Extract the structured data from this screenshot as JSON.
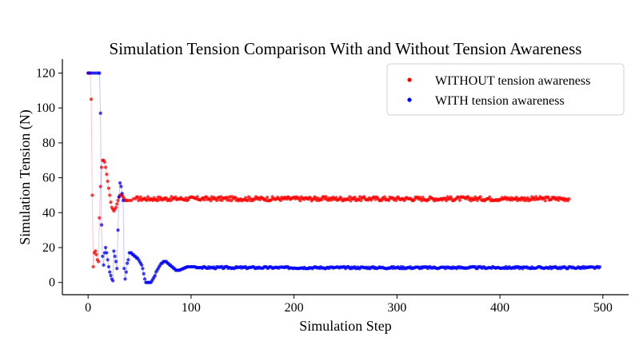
{
  "chart_data": {
    "type": "scatter",
    "title": "Simulation Tension Comparison With and Without Tension Awareness",
    "xlabel": "Simulation Step",
    "ylabel": "Simulation Tension (N)",
    "xlim": [
      -25,
      525
    ],
    "ylim": [
      -7,
      128
    ],
    "xticks": [
      "0",
      "100",
      "200",
      "300",
      "400",
      "500"
    ],
    "yticks": [
      "0",
      "20",
      "40",
      "60",
      "80",
      "100",
      "120"
    ],
    "legend_position": "top-right",
    "series": [
      {
        "name": "WITHOUT tension awareness",
        "color": "#ff0000",
        "x_end": 467,
        "steady_value": 48,
        "noise": 1.2,
        "points": [
          [
            0,
            120
          ],
          [
            1,
            120
          ],
          [
            2,
            120
          ],
          [
            3,
            105
          ],
          [
            4,
            50
          ],
          [
            5,
            9
          ],
          [
            6,
            17
          ],
          [
            7,
            18
          ],
          [
            8,
            16
          ],
          [
            9,
            13
          ],
          [
            10,
            12
          ],
          [
            11,
            37
          ],
          [
            12,
            55
          ],
          [
            13,
            66
          ],
          [
            14,
            70
          ],
          [
            15,
            70
          ],
          [
            16,
            69
          ],
          [
            17,
            66
          ],
          [
            18,
            62
          ],
          [
            19,
            58
          ],
          [
            20,
            54
          ],
          [
            21,
            50
          ],
          [
            22,
            46
          ],
          [
            23,
            43
          ],
          [
            24,
            42
          ],
          [
            25,
            41
          ],
          [
            26,
            42
          ],
          [
            27,
            43
          ],
          [
            28,
            45
          ],
          [
            29,
            47
          ],
          [
            30,
            49
          ],
          [
            31,
            50
          ],
          [
            32,
            50
          ],
          [
            33,
            50
          ],
          [
            34,
            49
          ],
          [
            35,
            48
          ],
          [
            36,
            47
          ],
          [
            37,
            47
          ],
          [
            38,
            47
          ],
          [
            40,
            47
          ],
          [
            42,
            47
          ],
          [
            44,
            48
          ],
          [
            46,
            48
          ]
        ]
      },
      {
        "name": "WITH tension awareness",
        "color": "#0000ff",
        "x_end": 497,
        "steady_value": 8.5,
        "noise": 0.6,
        "points": [
          [
            0,
            120
          ],
          [
            2,
            120
          ],
          [
            4,
            120
          ],
          [
            6,
            120
          ],
          [
            8,
            120
          ],
          [
            10,
            120
          ],
          [
            11,
            120
          ],
          [
            12,
            97
          ],
          [
            13,
            33
          ],
          [
            14,
            15
          ],
          [
            15,
            10
          ],
          [
            16,
            17
          ],
          [
            17,
            20
          ],
          [
            18,
            17
          ],
          [
            19,
            13
          ],
          [
            20,
            9
          ],
          [
            21,
            6
          ],
          [
            22,
            4
          ],
          [
            23,
            2
          ],
          [
            24,
            1
          ],
          [
            25,
            18
          ],
          [
            26,
            15
          ],
          [
            27,
            12
          ],
          [
            28,
            8
          ],
          [
            29,
            30
          ],
          [
            30,
            49
          ],
          [
            31,
            57
          ],
          [
            32,
            55
          ],
          [
            33,
            51
          ],
          [
            34,
            47
          ],
          [
            35,
            8
          ],
          [
            36,
            2
          ],
          [
            37,
            6
          ],
          [
            38,
            11
          ],
          [
            39,
            13
          ],
          [
            40,
            17
          ],
          [
            41,
            17
          ],
          [
            42,
            17
          ],
          [
            43,
            16
          ],
          [
            44,
            16
          ],
          [
            45,
            15
          ],
          [
            46,
            15
          ],
          [
            47,
            14
          ],
          [
            48,
            14
          ],
          [
            49,
            13
          ],
          [
            50,
            12
          ],
          [
            51,
            11
          ],
          [
            52,
            10
          ],
          [
            53,
            8
          ],
          [
            54,
            5
          ],
          [
            55,
            2
          ],
          [
            56,
            0
          ],
          [
            57,
            0
          ],
          [
            58,
            0
          ],
          [
            59,
            0
          ],
          [
            60,
            0
          ],
          [
            61,
            0
          ],
          [
            62,
            1
          ],
          [
            63,
            2
          ],
          [
            64,
            3
          ],
          [
            65,
            4
          ],
          [
            66,
            6
          ],
          [
            67,
            7
          ],
          [
            68,
            8
          ],
          [
            69,
            9
          ],
          [
            70,
            10
          ],
          [
            71,
            11
          ],
          [
            72,
            11
          ],
          [
            73,
            12
          ],
          [
            74,
            12
          ],
          [
            75,
            12
          ],
          [
            76,
            12
          ],
          [
            77,
            11
          ],
          [
            78,
            11
          ],
          [
            79,
            10
          ],
          [
            80,
            10
          ],
          [
            81,
            9
          ],
          [
            82,
            9
          ],
          [
            83,
            8
          ],
          [
            84,
            8
          ],
          [
            85,
            7
          ],
          [
            86,
            7
          ],
          [
            87,
            7
          ],
          [
            88,
            7
          ],
          [
            89,
            7
          ],
          [
            90,
            7.5
          ],
          [
            91,
            7.5
          ],
          [
            92,
            8
          ],
          [
            93,
            8
          ],
          [
            94,
            8.5
          ],
          [
            95,
            8.5
          ],
          [
            96,
            9
          ],
          [
            97,
            9
          ],
          [
            98,
            9
          ],
          [
            99,
            9
          ],
          [
            100,
            9
          ],
          [
            101,
            9
          ],
          [
            102,
            9
          ],
          [
            103,
            9
          ],
          [
            104,
            9
          ],
          [
            105,
            8.5
          ],
          [
            106,
            8.5
          ],
          [
            107,
            8.5
          ],
          [
            108,
            8.5
          ],
          [
            109,
            8.5
          ],
          [
            110,
            8.5
          ]
        ]
      }
    ]
  }
}
